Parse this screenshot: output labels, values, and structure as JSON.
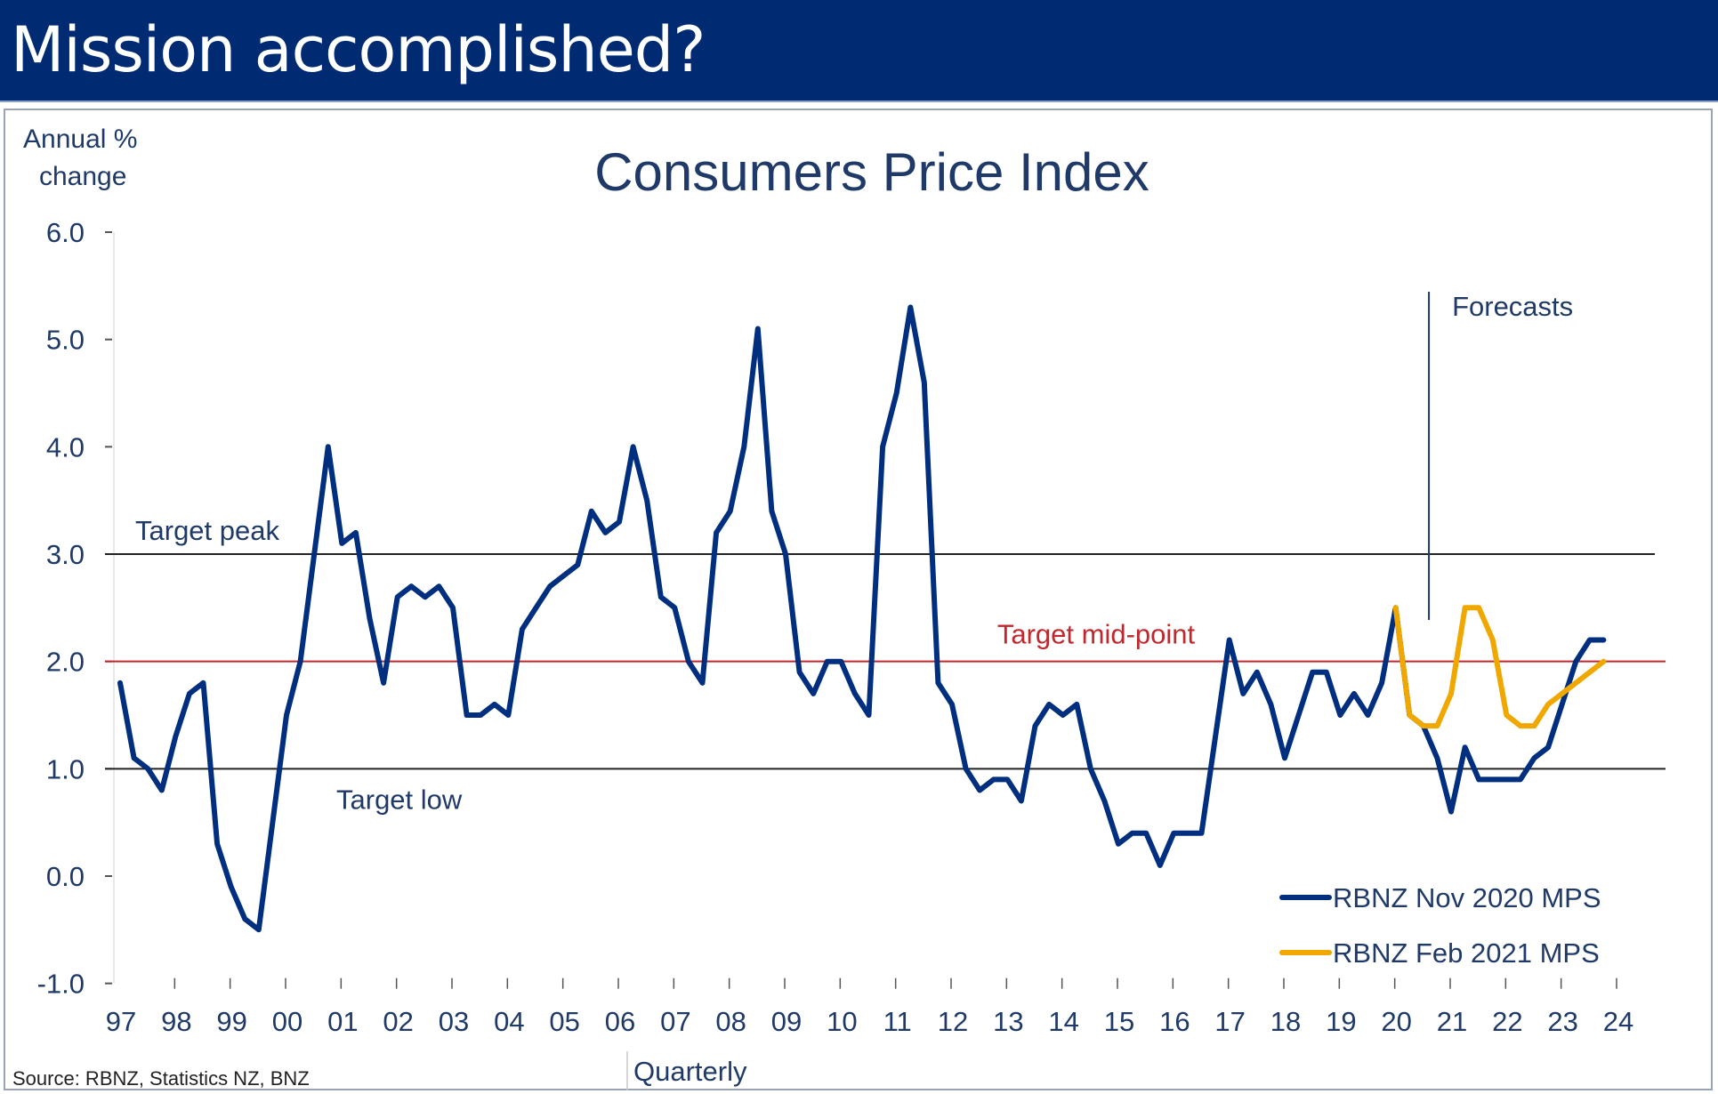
{
  "slide": {
    "title": "Mission accomplished?"
  },
  "colors": {
    "title_bar": "#002b73",
    "series_nov2020": "#002f7f",
    "series_feb2021": "#f0a800",
    "midpoint_line": "#c0282d",
    "target_band_lines": "#222222",
    "text": "#1f3a68"
  },
  "chart_data": {
    "type": "line",
    "title": "Consumers Price Index",
    "ylabel": "Annual % change",
    "ylabel_lines": [
      "Annual %",
      "change"
    ],
    "xlabel": "Quarterly",
    "source": "Source: RBNZ, Statistics NZ, BNZ",
    "ylim": [
      -1.0,
      6.0
    ],
    "yticks": [
      -1.0,
      0.0,
      1.0,
      2.0,
      3.0,
      4.0,
      5.0,
      6.0
    ],
    "ytick_labels": [
      "-1.0",
      "0.0",
      "1.0",
      "2.0",
      "3.0",
      "4.0",
      "5.0",
      "6.0"
    ],
    "xlim": [
      1997.0,
      2024.3
    ],
    "xticks": [
      1997,
      1998,
      1999,
      2000,
      2001,
      2002,
      2003,
      2004,
      2005,
      2006,
      2007,
      2008,
      2009,
      2010,
      2011,
      2012,
      2013,
      2014,
      2015,
      2016,
      2017,
      2018,
      2019,
      2020,
      2021,
      2022,
      2023,
      2024
    ],
    "xtick_labels": [
      "97",
      "98",
      "99",
      "00",
      "01",
      "02",
      "03",
      "04",
      "05",
      "06",
      "07",
      "08",
      "09",
      "10",
      "11",
      "12",
      "13",
      "14",
      "15",
      "16",
      "17",
      "18",
      "19",
      "20",
      "21",
      "22",
      "23",
      "24"
    ],
    "grid": false,
    "legend_position": "bottom-right",
    "reference_lines": [
      {
        "name": "Target peak",
        "value": 3.0,
        "color": "#222222",
        "label": "Target peak"
      },
      {
        "name": "Target mid-point",
        "value": 2.0,
        "color": "#c0282d",
        "label": "Target mid-point"
      },
      {
        "name": "Target low",
        "value": 1.0,
        "color": "#222222",
        "label": "Target low"
      }
    ],
    "forecast_marker": {
      "x": 2020.6,
      "label": "Forecasts"
    },
    "series": [
      {
        "name": "RBNZ Nov 2020 MPS",
        "color": "#002f7f",
        "x": [
          1997.0,
          1997.25,
          1997.5,
          1997.75,
          1998.0,
          1998.25,
          1998.5,
          1998.75,
          1999.0,
          1999.25,
          1999.5,
          1999.75,
          2000.0,
          2000.25,
          2000.5,
          2000.75,
          2001.0,
          2001.25,
          2001.5,
          2001.75,
          2002.0,
          2002.25,
          2002.5,
          2002.75,
          2003.0,
          2003.25,
          2003.5,
          2003.75,
          2004.0,
          2004.25,
          2004.5,
          2004.75,
          2005.0,
          2005.25,
          2005.5,
          2005.75,
          2006.0,
          2006.25,
          2006.5,
          2006.75,
          2007.0,
          2007.25,
          2007.5,
          2007.75,
          2008.0,
          2008.25,
          2008.5,
          2008.75,
          2009.0,
          2009.25,
          2009.5,
          2009.75,
          2010.0,
          2010.25,
          2010.5,
          2010.75,
          2011.0,
          2011.25,
          2011.5,
          2011.75,
          2012.0,
          2012.25,
          2012.5,
          2012.75,
          2013.0,
          2013.25,
          2013.5,
          2013.75,
          2014.0,
          2014.25,
          2014.5,
          2014.75,
          2015.0,
          2015.25,
          2015.5,
          2015.75,
          2016.0,
          2016.25,
          2016.5,
          2016.75,
          2017.0,
          2017.25,
          2017.5,
          2017.75,
          2018.0,
          2018.25,
          2018.5,
          2018.75,
          2019.0,
          2019.25,
          2019.5,
          2019.75,
          2020.0,
          2020.25,
          2020.5,
          2020.75,
          2021.0,
          2021.25,
          2021.5,
          2021.75,
          2022.0,
          2022.25,
          2022.5,
          2022.75,
          2023.0,
          2023.25,
          2023.5,
          2023.75
        ],
        "values": [
          1.8,
          1.1,
          1.0,
          0.8,
          1.3,
          1.7,
          1.8,
          0.3,
          -0.1,
          -0.4,
          -0.5,
          0.5,
          1.5,
          2.0,
          3.0,
          4.0,
          3.1,
          3.2,
          2.4,
          1.8,
          2.6,
          2.7,
          2.6,
          2.7,
          2.5,
          1.5,
          1.5,
          1.6,
          1.5,
          2.3,
          2.5,
          2.7,
          2.8,
          2.9,
          3.4,
          3.2,
          3.3,
          4.0,
          3.5,
          2.6,
          2.5,
          2.0,
          1.8,
          3.2,
          3.4,
          4.0,
          5.1,
          3.4,
          3.0,
          1.9,
          1.7,
          2.0,
          2.0,
          1.7,
          1.5,
          4.0,
          4.5,
          5.3,
          4.6,
          1.8,
          1.6,
          1.0,
          0.8,
          0.9,
          0.9,
          0.7,
          1.4,
          1.6,
          1.5,
          1.6,
          1.0,
          0.7,
          0.3,
          0.4,
          0.4,
          0.1,
          0.4,
          0.4,
          0.4,
          1.3,
          2.2,
          1.7,
          1.9,
          1.6,
          1.1,
          1.5,
          1.9,
          1.9,
          1.5,
          1.7,
          1.5,
          1.8,
          2.5,
          1.5,
          1.4,
          1.1,
          0.6,
          1.2,
          0.9,
          0.9,
          0.9,
          0.9,
          1.1,
          1.2,
          1.6,
          2.0,
          2.2,
          2.2
        ]
      },
      {
        "name": "RBNZ Feb 2021 MPS",
        "color": "#f0a800",
        "x": [
          2020.0,
          2020.25,
          2020.5,
          2020.75,
          2021.0,
          2021.25,
          2021.5,
          2021.75,
          2022.0,
          2022.25,
          2022.5,
          2022.75,
          2023.0,
          2023.25,
          2023.5,
          2023.75
        ],
        "values": [
          2.5,
          1.5,
          1.4,
          1.4,
          1.7,
          2.5,
          2.5,
          2.2,
          1.5,
          1.4,
          1.4,
          1.6,
          1.7,
          1.8,
          1.9,
          2.0
        ]
      }
    ]
  }
}
